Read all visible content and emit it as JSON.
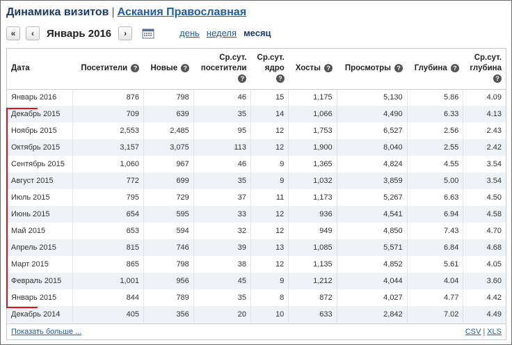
{
  "header": {
    "title": "Динамика визитов",
    "separator": "|",
    "site_link": "Аскания Православная"
  },
  "nav": {
    "first_label": "«",
    "prev_label": "‹",
    "current_period": "Январь 2016",
    "next_label": "›",
    "periods": [
      "день",
      "неделя",
      "месяц"
    ],
    "active_period": "месяц"
  },
  "table": {
    "columns": [
      {
        "lines": [
          "Дата"
        ],
        "help": false
      },
      {
        "lines": [
          "Посетители"
        ],
        "help": true
      },
      {
        "lines": [
          "Новые"
        ],
        "help": true
      },
      {
        "lines": [
          "Ср.сут.",
          "посетители"
        ],
        "help": true
      },
      {
        "lines": [
          "Ср.сут.",
          "ядро"
        ],
        "help": true
      },
      {
        "lines": [
          "Хосты"
        ],
        "help": true
      },
      {
        "lines": [
          "Просмотры"
        ],
        "help": true
      },
      {
        "lines": [
          "Глубина"
        ],
        "help": true
      },
      {
        "lines": [
          "Ср.сут.",
          "глубина"
        ],
        "help": true
      }
    ],
    "help_glyph": "?",
    "rows": [
      [
        "Январь 2016",
        "876",
        "798",
        "46",
        "15",
        "1,175",
        "5,130",
        "5.86",
        "4.09"
      ],
      [
        "Декабрь 2015",
        "709",
        "639",
        "35",
        "14",
        "1,066",
        "4,490",
        "6.33",
        "4.13"
      ],
      [
        "Ноябрь 2015",
        "2,553",
        "2,485",
        "95",
        "12",
        "1,753",
        "6,527",
        "2.56",
        "2.43"
      ],
      [
        "Октябрь 2015",
        "3,157",
        "3,075",
        "113",
        "12",
        "1,900",
        "8,040",
        "2.55",
        "2.42"
      ],
      [
        "Сентябрь 2015",
        "1,060",
        "967",
        "46",
        "9",
        "1,365",
        "4,824",
        "4.55",
        "3.54"
      ],
      [
        "Август 2015",
        "772",
        "699",
        "35",
        "9",
        "1,032",
        "3,859",
        "5.00",
        "3.54"
      ],
      [
        "Июль 2015",
        "795",
        "729",
        "37",
        "11",
        "1,173",
        "5,267",
        "6.63",
        "4.50"
      ],
      [
        "Июнь 2015",
        "654",
        "595",
        "33",
        "12",
        "936",
        "4,541",
        "6.94",
        "4.58"
      ],
      [
        "Май 2015",
        "653",
        "594",
        "32",
        "12",
        "949",
        "4,850",
        "7.43",
        "4.70"
      ],
      [
        "Апрель 2015",
        "815",
        "746",
        "39",
        "13",
        "1,085",
        "5,571",
        "6.84",
        "4.68"
      ],
      [
        "Март 2015",
        "865",
        "798",
        "38",
        "12",
        "1,135",
        "4,852",
        "5.61",
        "4.05"
      ],
      [
        "Февраль 2015",
        "1,001",
        "956",
        "45",
        "9",
        "1,212",
        "4,044",
        "4.04",
        "3.60"
      ],
      [
        "Январь 2015",
        "844",
        "789",
        "35",
        "8",
        "872",
        "4,027",
        "4.77",
        "4.42"
      ],
      [
        "Декабрь 2014",
        "405",
        "356",
        "20",
        "10",
        "633",
        "2,842",
        "7.02",
        "4.49"
      ]
    ]
  },
  "footer": {
    "show_more": "Показать больше ...",
    "csv": "CSV",
    "sep": "|",
    "xls": "XLS"
  },
  "colors": {
    "title": "#1b3a6b",
    "link": "#1a5fa8",
    "annotation": "#d8141a",
    "row_stripe": "#eef2f7"
  }
}
